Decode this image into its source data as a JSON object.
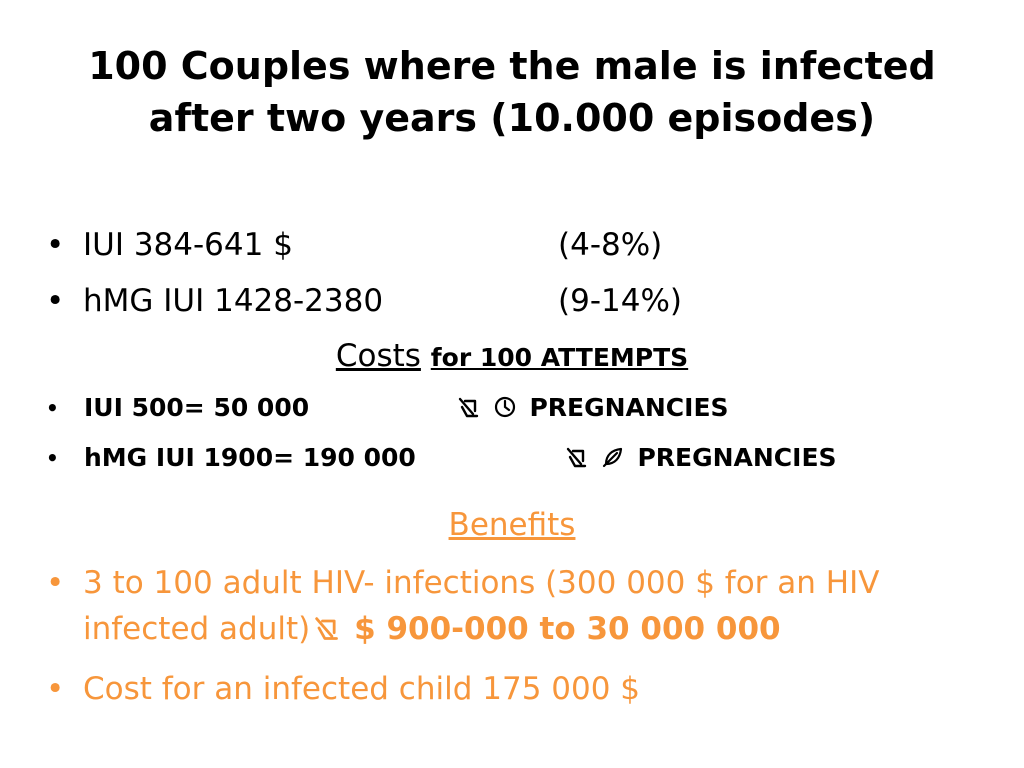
{
  "title": {
    "line1": "100 Couples where the male is infected",
    "line2": "after two years (10.000 episodes)"
  },
  "intro_rows": [
    {
      "label": "IUI 384-641 $",
      "value": "(4-8%)"
    },
    {
      "label": "hMG IUI  1428-2380",
      "value": "(9-14%)"
    }
  ],
  "costs_heading": {
    "word": "Costs",
    "rest": "for 100 ATTEMPTS"
  },
  "cost_rows": [
    {
      "label": "IUI 500= 50 000",
      "icons": [
        "arrow-icon",
        "clock-icon"
      ],
      "value": "PREGNANCIES"
    },
    {
      "label": "hMG IUI 1900= 190 000",
      "icons": [
        "arrow-icon",
        "leaf-icon"
      ],
      "value": "PREGNANCIES"
    }
  ],
  "benefits": {
    "heading": "Benefits",
    "item1_text": "3 to 100 adult HIV- infections (300 000 $  for an HIV infected adult)",
    "item1_icon": "arrow-icon",
    "item1_strong": "$ 900-000 to 30 000 000",
    "item2_text": "Cost for an infected child  175 000 $"
  },
  "colors": {
    "accent": "#f7963b",
    "text": "#000000"
  },
  "bullet": "•"
}
